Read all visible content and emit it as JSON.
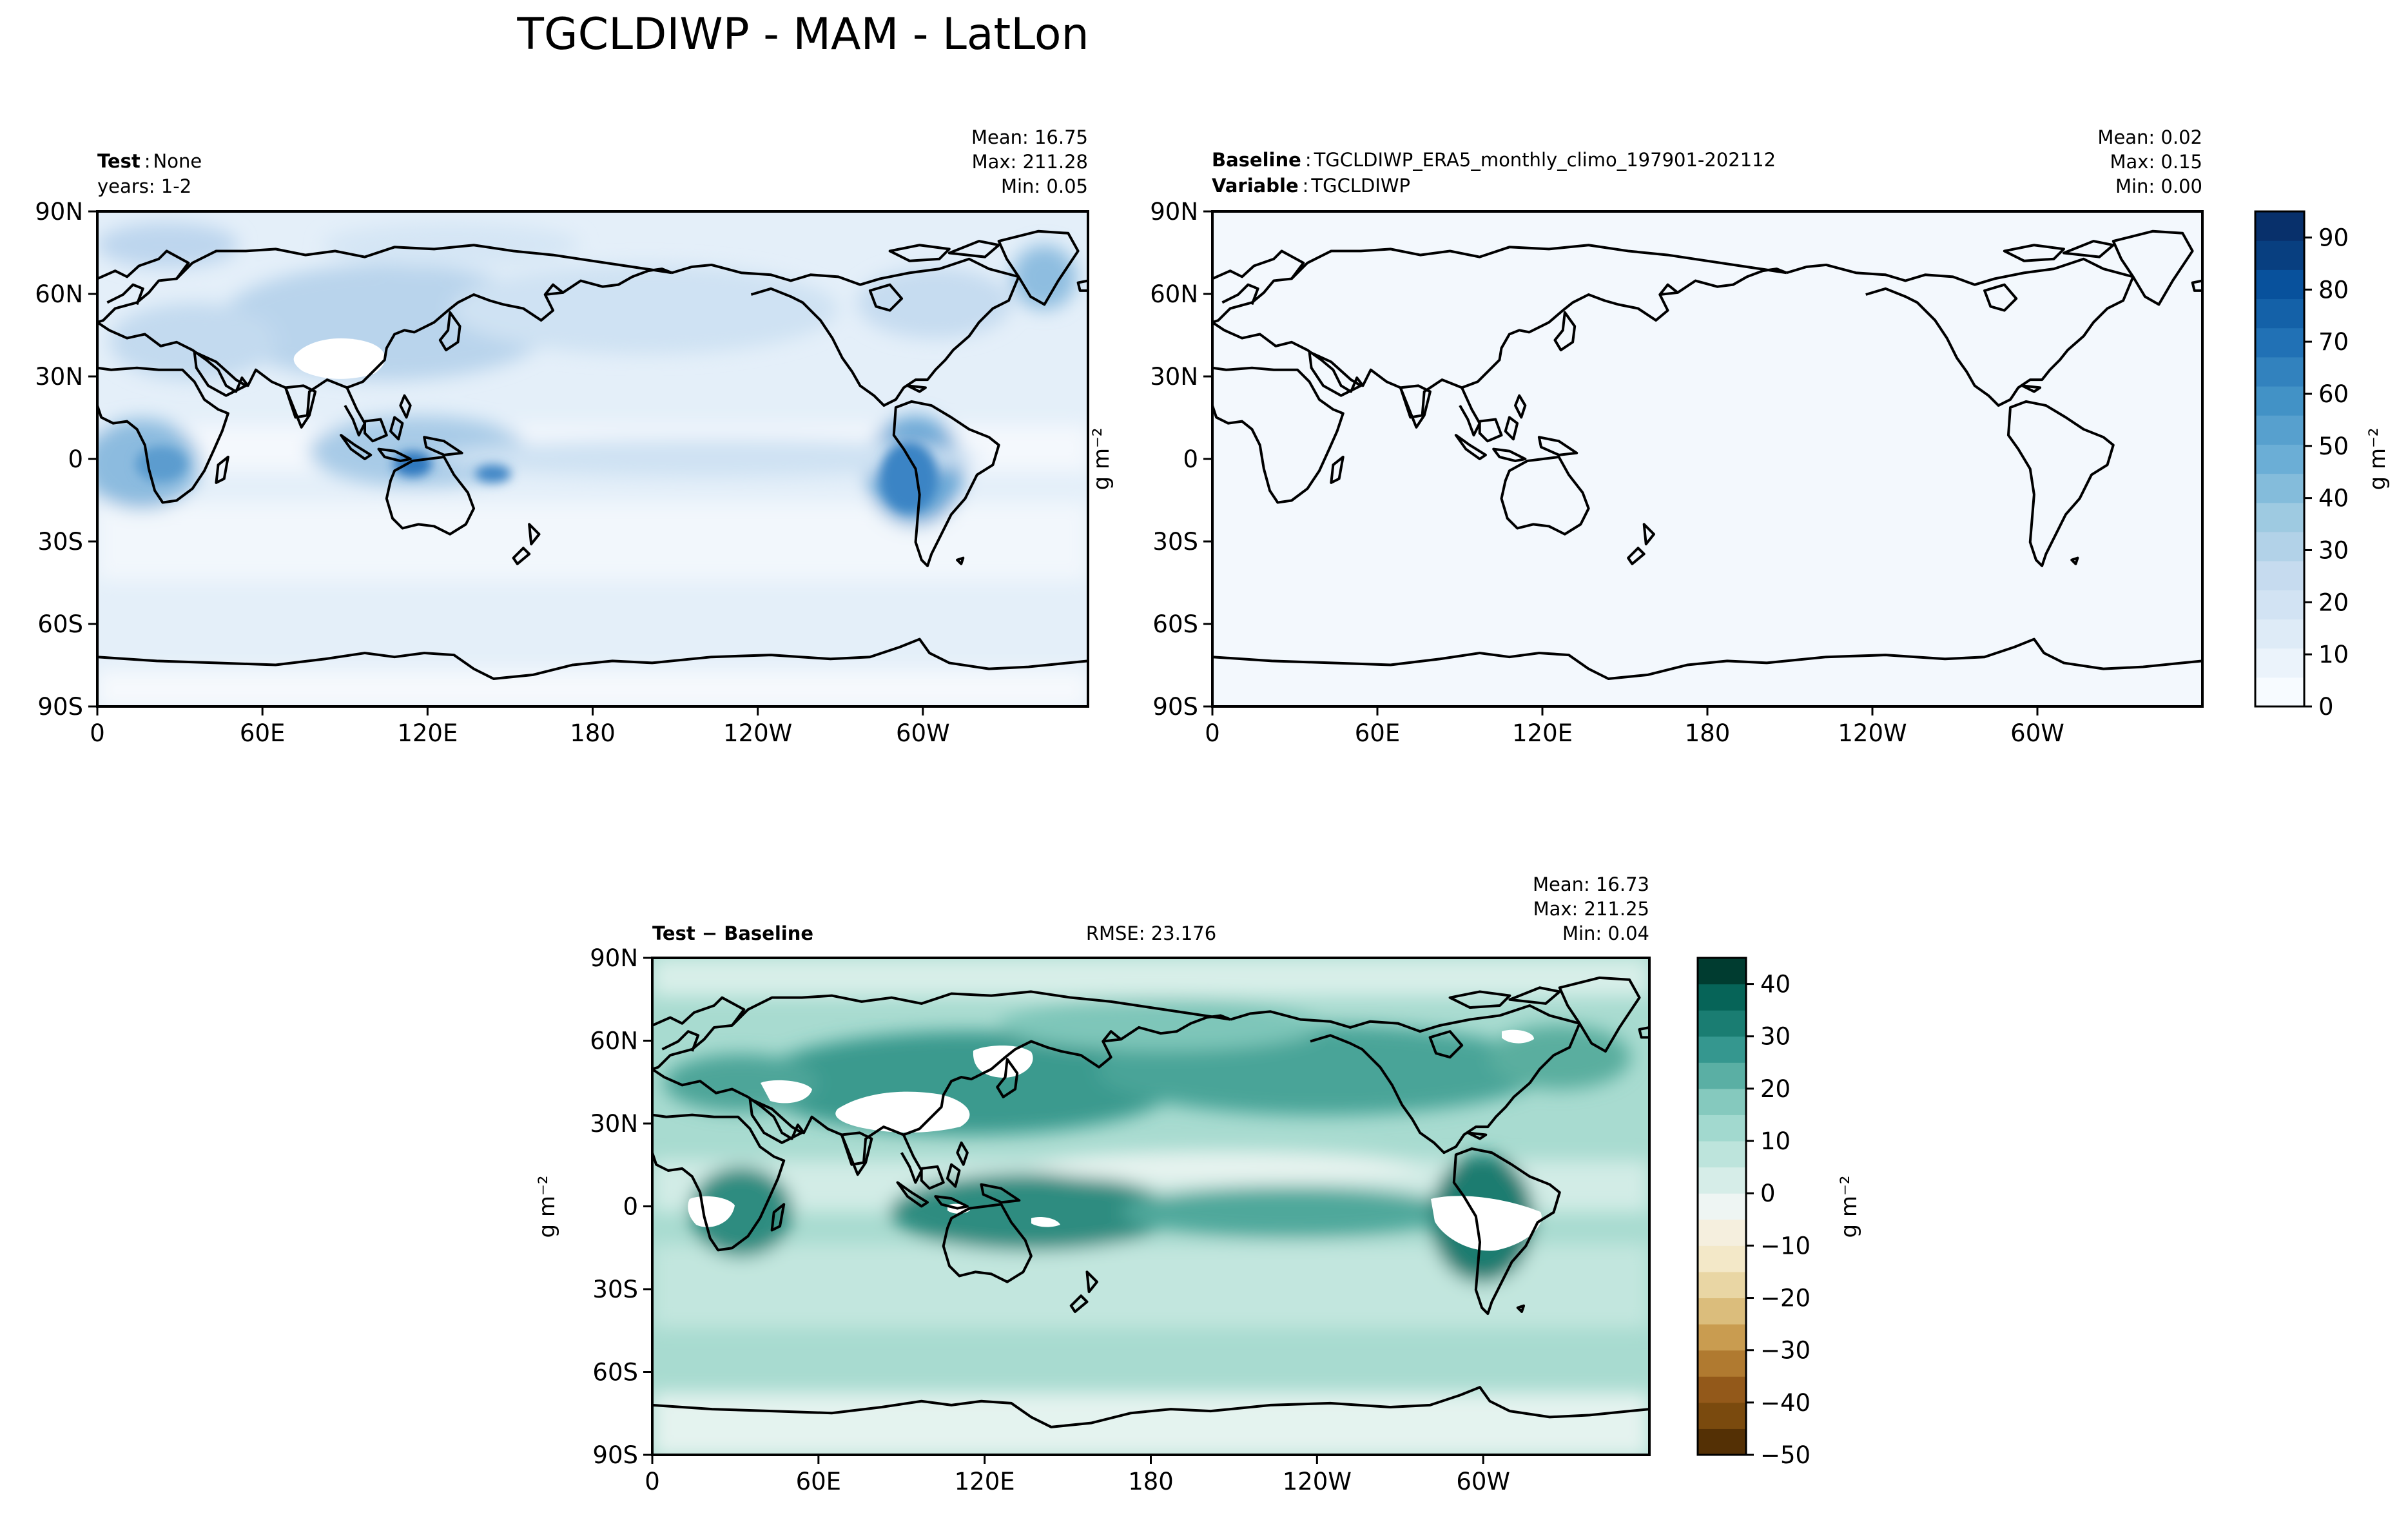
{
  "figure": {
    "title": "TGCLDIWP - MAM - LatLon"
  },
  "axis_ticks": {
    "lon": [
      "0",
      "60E",
      "120E",
      "180",
      "120W",
      "60W"
    ],
    "lat": [
      "90N",
      "60N",
      "30N",
      "0",
      "30S",
      "60S",
      "90S"
    ]
  },
  "panel_test": {
    "label_bold": "Test",
    "label_value": "None",
    "years": "years: 1-2",
    "mean": "Mean: 16.75",
    "max": "Max: 211.28",
    "min": "Min:  0.05"
  },
  "panel_baseline": {
    "label_bold": "Baseline",
    "label_value": "TGCLDIWP_ERA5_monthly_climo_197901-202112",
    "variable_bold": "Variable",
    "variable_value": "TGCLDIWP",
    "mean": "Mean:  0.02",
    "max": "Max:  0.15",
    "min": "Min:  0.00",
    "ylabel": "g m⁻²"
  },
  "panel_diff": {
    "label": "Test − Baseline",
    "rmse": "RMSE: 23.176",
    "mean": "Mean: 16.73",
    "max": "Max: 211.25",
    "min": "Min:  0.04",
    "ylabel": "g m⁻²"
  },
  "colorbar_top": {
    "units": "g m⁻²",
    "ticks": [
      "0",
      "10",
      "20",
      "30",
      "40",
      "50",
      "60",
      "70",
      "80",
      "90"
    ],
    "range": [
      0,
      95
    ],
    "colors": [
      "#f7fbff",
      "#ebf3fb",
      "#deebf7",
      "#d2e3f3",
      "#c6dbef",
      "#b2d2e8",
      "#9ecae1",
      "#84bcdb",
      "#6baed6",
      "#57a0ce",
      "#4292c6",
      "#3282be",
      "#2171b5",
      "#1461a8",
      "#08519c",
      "#083f80",
      "#08306b"
    ]
  },
  "colorbar_diff": {
    "units": "g m⁻²",
    "ticks": [
      "40",
      "30",
      "20",
      "10",
      "0",
      "−10",
      "−20",
      "−30",
      "−40",
      "−50"
    ],
    "range": [
      -50,
      45
    ],
    "colors": [
      "#543005",
      "#7a4a0e",
      "#93591a",
      "#b07a30",
      "#c99c50",
      "#dbbd7c",
      "#e9d6a4",
      "#f3e8c8",
      "#f5efde",
      "#eef5f3",
      "#d6ede8",
      "#bde4dc",
      "#a2d9cf",
      "#85c9be",
      "#5aafa4",
      "#35978f",
      "#1a7d72",
      "#066458",
      "#003c30"
    ]
  },
  "chart_data": [
    {
      "type": "heatmap",
      "title": "Test: None (years: 1-2)",
      "xlabel": "",
      "ylabel": "",
      "xlim": [
        0,
        360
      ],
      "ylim": [
        -90,
        90
      ],
      "units": "g m⁻²",
      "stats": {
        "mean": 16.75,
        "max": 211.28,
        "min": 0.05
      }
    },
    {
      "type": "heatmap",
      "title": "Baseline: TGCLDIWP_ERA5_monthly_climo_197901-202112",
      "xlabel": "",
      "ylabel": "g m⁻²",
      "xlim": [
        0,
        360
      ],
      "ylim": [
        -90,
        90
      ],
      "units": "g m⁻²",
      "stats": {
        "mean": 0.02,
        "max": 0.15,
        "min": 0.0
      }
    },
    {
      "type": "heatmap",
      "title": "Test − Baseline",
      "xlabel": "",
      "ylabel": "g m⁻²",
      "xlim": [
        0,
        360
      ],
      "ylim": [
        -90,
        90
      ],
      "units": "g m⁻²",
      "stats": {
        "mean": 16.73,
        "max": 211.25,
        "min": 0.04,
        "rmse": 23.176
      }
    }
  ]
}
